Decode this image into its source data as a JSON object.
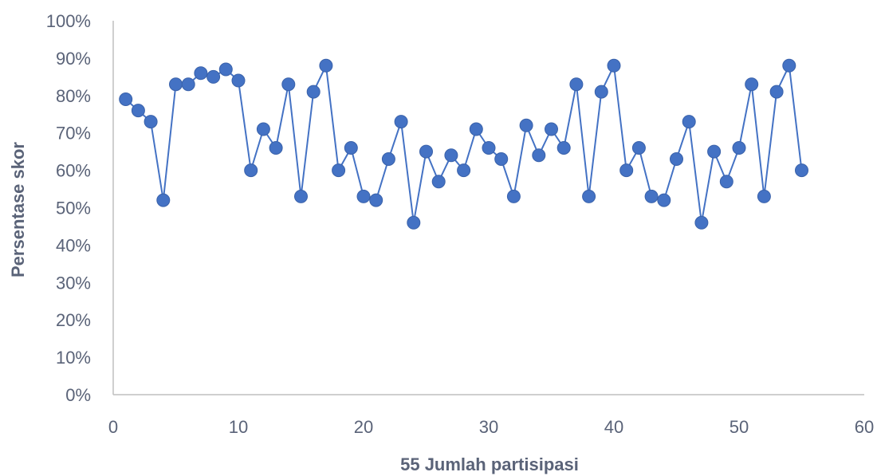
{
  "chart_data": {
    "type": "scatter",
    "title": "",
    "xlabel": "55 Jumlah partisipasi",
    "ylabel": "Persentase skor",
    "xlim": [
      0,
      60
    ],
    "ylim": [
      0,
      1
    ],
    "x_ticks": [
      0,
      10,
      20,
      30,
      40,
      50,
      60
    ],
    "y_ticks": [
      0,
      0.1,
      0.2,
      0.3,
      0.4,
      0.5,
      0.6,
      0.7,
      0.8,
      0.9,
      1.0
    ],
    "x_tick_labels": [
      "0",
      "10",
      "20",
      "30",
      "40",
      "50",
      "60"
    ],
    "y_tick_labels": [
      "0%",
      "10%",
      "20%",
      "30%",
      "40%",
      "50%",
      "60%",
      "70%",
      "80%",
      "90%",
      "100%"
    ],
    "grid": false,
    "legend": "none",
    "style": "line-with-markers",
    "series": [
      {
        "x": [
          1,
          2,
          3,
          4,
          5,
          6,
          7,
          8,
          9,
          10,
          11,
          12,
          13,
          14,
          15,
          16,
          17,
          18,
          19,
          20,
          21,
          22,
          23,
          24,
          25,
          26,
          27,
          28,
          29,
          30,
          31,
          32,
          33,
          34,
          35,
          36,
          37,
          38,
          39,
          40,
          41,
          42,
          43,
          44,
          45,
          46,
          47,
          48,
          49,
          50,
          51,
          52,
          53,
          54,
          55
        ],
        "y": [
          0.79,
          0.76,
          0.73,
          0.52,
          0.83,
          0.83,
          0.86,
          0.85,
          0.87,
          0.84,
          0.6,
          0.71,
          0.66,
          0.83,
          0.53,
          0.81,
          0.88,
          0.6,
          0.66,
          0.53,
          0.52,
          0.63,
          0.73,
          0.46,
          0.65,
          0.57,
          0.64,
          0.6,
          0.71,
          0.66,
          0.63,
          0.53,
          0.72,
          0.64,
          0.71,
          0.66,
          0.83,
          0.53,
          0.81,
          0.88,
          0.6,
          0.66,
          0.53,
          0.52,
          0.63,
          0.73,
          0.46,
          0.65,
          0.57,
          0.66,
          0.83,
          0.53,
          0.81,
          0.88,
          0.6
        ]
      }
    ],
    "colors": {
      "series": "#4472C4",
      "axis": "#BFBFBF",
      "text": "#5A6378"
    }
  }
}
